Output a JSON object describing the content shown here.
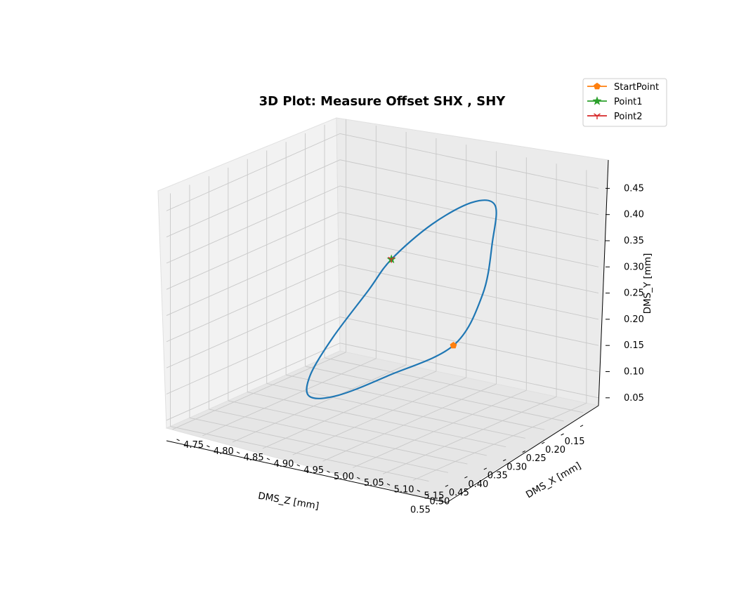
{
  "chart_data": {
    "type": "line3d",
    "title": "3D Plot: Measure Offset SHX , SHY",
    "xlabel": "DMS_Z [mm]",
    "ylabel": "DMS_X [mm]",
    "zlabel": "DMS_Y [mm]",
    "x_ticks": [
      "0.15",
      "0.20",
      "0.25",
      "0.30",
      "0.35",
      "0.40",
      "0.45",
      "0.50",
      "0.55"
    ],
    "y_ticks": [
      "4.75",
      "4.80",
      "4.85",
      "4.90",
      "4.95",
      "5.00",
      "5.05",
      "5.10",
      "5.15"
    ],
    "z_ticks": [
      "0.05",
      "0.10",
      "0.15",
      "0.20",
      "0.25",
      "0.30",
      "0.35",
      "0.40",
      "0.45"
    ],
    "grid": true,
    "legend_position": "top-right",
    "series": [
      {
        "name": "StartPoint",
        "marker": "pentagon",
        "color": "#ff7f0e",
        "point": [
          0.19,
          4.98,
          0.13
        ]
      },
      {
        "name": "Point1",
        "marker": "star",
        "color": "#2ca02c",
        "point": [
          0.46,
          5.05,
          0.4
        ]
      },
      {
        "name": "Point2",
        "marker": "tri_down",
        "color": "#d62728",
        "point": [
          0.46,
          5.05,
          0.4
        ]
      }
    ],
    "trajectory": {
      "color": "#1f77b4",
      "shape": "closed circle",
      "points": [
        [
          0.19,
          4.98,
          0.13
        ],
        [
          0.28,
          4.93,
          0.09
        ],
        [
          0.38,
          4.91,
          0.08
        ],
        [
          0.47,
          4.92,
          0.11
        ],
        [
          0.53,
          4.96,
          0.18
        ],
        [
          0.55,
          5.01,
          0.27
        ],
        [
          0.52,
          5.05,
          0.36
        ],
        [
          0.46,
          5.05,
          0.4
        ],
        [
          0.37,
          5.06,
          0.44
        ],
        [
          0.25,
          5.05,
          0.44
        ],
        [
          0.16,
          5.03,
          0.4
        ],
        [
          0.12,
          5.0,
          0.31
        ],
        [
          0.13,
          4.99,
          0.21
        ],
        [
          0.19,
          4.98,
          0.13
        ]
      ]
    }
  }
}
